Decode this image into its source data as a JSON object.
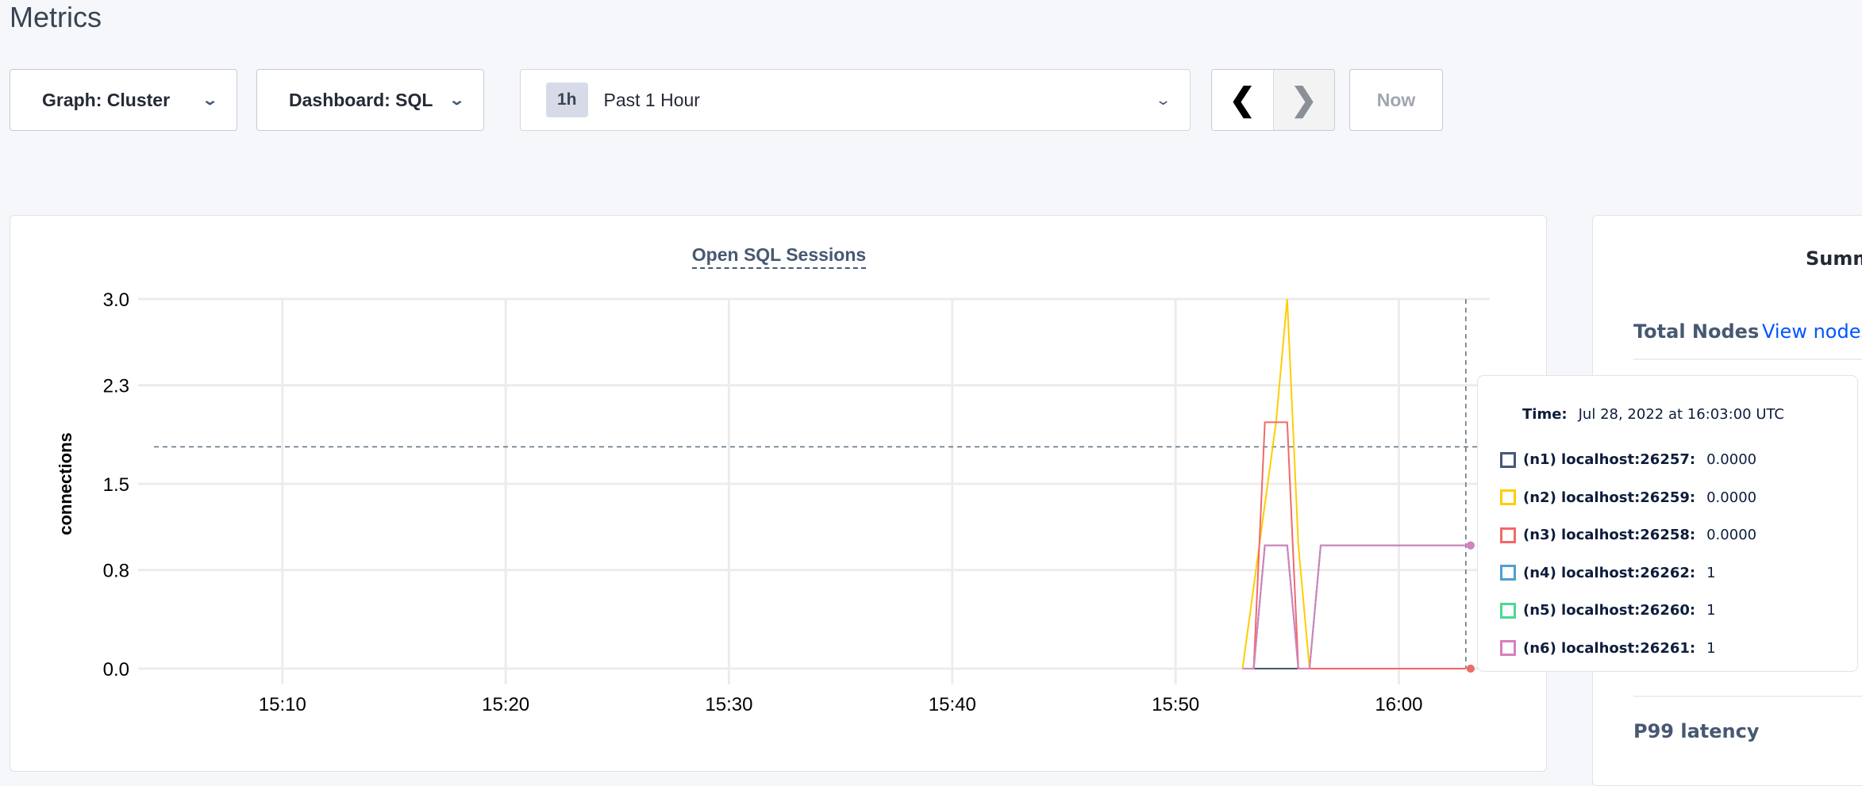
{
  "page": {
    "title": "Metrics"
  },
  "toolbar": {
    "graph_label": "Graph: Cluster",
    "dashboard_label": "Dashboard: SQL",
    "time_badge": "1h",
    "time_label": "Past 1 Hour",
    "prev_icon": "chevron-left-icon",
    "next_icon": "chevron-right-icon",
    "now_label": "Now"
  },
  "tooltip": {
    "time_label": "Time:",
    "time_value": "Jul 28, 2022 at 16:03:00 UTC",
    "rows": [
      {
        "name": "(n1) localhost:26257:",
        "value": "0.0000",
        "color": "#475872"
      },
      {
        "name": "(n2) localhost:26259:",
        "value": "0.0000",
        "color": "#ffcd02"
      },
      {
        "name": "(n3) localhost:26258:",
        "value": "0.0000",
        "color": "#f16969"
      },
      {
        "name": "(n4) localhost:26262:",
        "value": "1",
        "color": "#4e9fd1"
      },
      {
        "name": "(n5) localhost:26260:",
        "value": "1",
        "color": "#49d990"
      },
      {
        "name": "(n6) localhost:26261:",
        "value": "1",
        "color": "#d77fbf"
      }
    ]
  },
  "summary": {
    "title": "Summ",
    "total_nodes_label": "Total Nodes",
    "view_nodes_link": "View nodes",
    "p99_label": "P99 latency"
  },
  "chart_data": {
    "type": "line",
    "title": "Open SQL Sessions",
    "xlabel": "",
    "ylabel": "connections",
    "xlim": [
      "15:04",
      "16:04"
    ],
    "ylim": [
      0,
      3.0
    ],
    "x_ticks": [
      "15:10",
      "15:20",
      "15:30",
      "15:40",
      "15:50",
      "16:00"
    ],
    "y_ticks": [
      "0.0",
      "0.8",
      "1.5",
      "2.3",
      "3.0"
    ],
    "grid": true,
    "crosshair": {
      "time": "16:03",
      "value": 1.8
    },
    "series": [
      {
        "name": "(n1) localhost:26257",
        "color": "#475872",
        "points": [
          [
            "15:53",
            0
          ],
          [
            "15:53:30",
            0
          ],
          [
            "15:54",
            0
          ],
          [
            "16:03",
            0
          ]
        ]
      },
      {
        "name": "(n4) localhost:26262",
        "color": "#4e9fd1",
        "points": [
          [
            "15:53",
            0
          ],
          [
            "15:53:30",
            0
          ],
          [
            "15:54",
            1
          ],
          [
            "15:55",
            1
          ],
          [
            "15:55:30",
            0
          ],
          [
            "15:56",
            0
          ],
          [
            "15:56:30",
            1
          ],
          [
            "16:03",
            1
          ]
        ]
      },
      {
        "name": "(n5) localhost:26260",
        "color": "#49d990",
        "points": [
          [
            "15:53",
            0
          ],
          [
            "15:53:30",
            0
          ],
          [
            "15:54",
            1
          ],
          [
            "15:55",
            1
          ],
          [
            "15:55:30",
            0
          ],
          [
            "15:56",
            0
          ],
          [
            "15:56:30",
            1
          ],
          [
            "16:03",
            1
          ]
        ]
      },
      {
        "name": "(n2) localhost:26259",
        "color": "#ffcd02",
        "points": [
          [
            "15:53",
            0
          ],
          [
            "15:54:30",
            2
          ],
          [
            "15:55",
            3
          ],
          [
            "15:55:30",
            1
          ],
          [
            "15:56",
            0
          ],
          [
            "16:03",
            0
          ]
        ]
      },
      {
        "name": "(n3) localhost:26258",
        "color": "#f16969",
        "points": [
          [
            "15:53",
            0
          ],
          [
            "15:53:30",
            0
          ],
          [
            "15:54",
            2
          ],
          [
            "15:55",
            2
          ],
          [
            "15:55:30",
            0
          ],
          [
            "16:03",
            0
          ]
        ]
      },
      {
        "name": "(n6) localhost:26261",
        "color": "#d77fbf",
        "points": [
          [
            "15:53",
            0
          ],
          [
            "15:53:30",
            0
          ],
          [
            "15:54",
            1
          ],
          [
            "15:55",
            1
          ],
          [
            "15:55:30",
            0
          ],
          [
            "15:56",
            0
          ],
          [
            "15:56:30",
            1
          ],
          [
            "16:03",
            1
          ]
        ]
      }
    ]
  }
}
